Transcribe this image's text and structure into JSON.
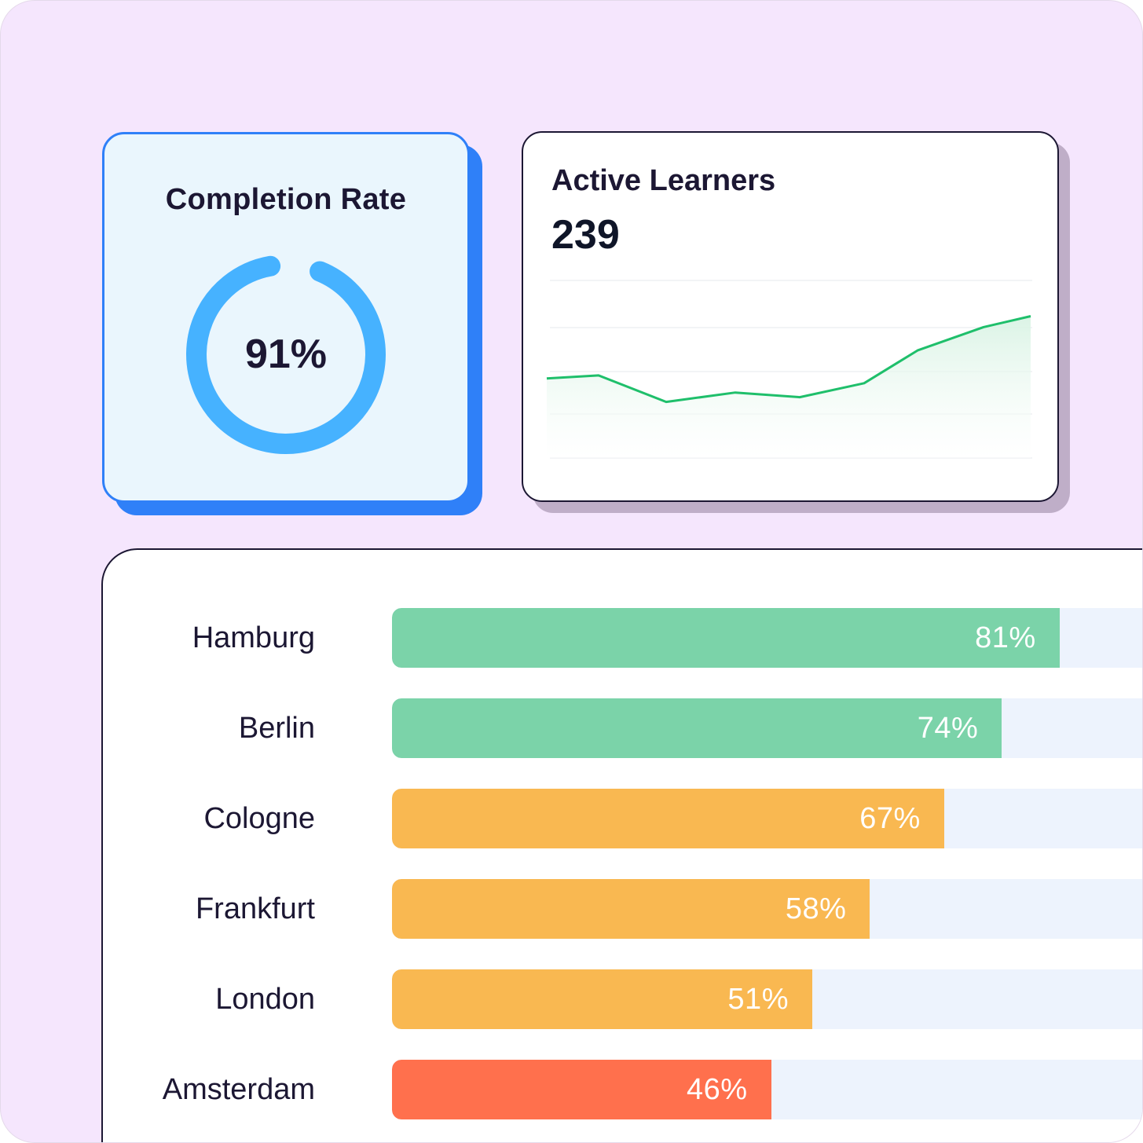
{
  "completion": {
    "title": "Completion Rate",
    "value_label": "91%",
    "percent": 91,
    "ring_color": "#46b2ff",
    "track_color": "#eaf6fd"
  },
  "learners": {
    "title": "Active Learners",
    "value": "239"
  },
  "chart_data": {
    "type": "area",
    "title": "Active Learners",
    "series": [
      {
        "values": [
          48,
          50,
          33,
          39,
          36,
          45,
          66,
          81,
          88
        ]
      }
    ],
    "ylim": [
      0,
      115
    ],
    "grid": true,
    "line_color": "#1fbf6b",
    "fill_color": "#e4f7ec"
  },
  "regions": {
    "items": [
      {
        "name": "Hamburg",
        "label": "81%",
        "value": 81,
        "color": "#7bd3a9"
      },
      {
        "name": "Berlin",
        "label": "74%",
        "value": 74,
        "color": "#7bd3a9"
      },
      {
        "name": "Cologne",
        "label": "67%",
        "value": 67,
        "color": "#f9b851"
      },
      {
        "name": "Frankfurt",
        "label": "58%",
        "value": 58,
        "color": "#f9b851"
      },
      {
        "name": "London",
        "label": "51%",
        "value": 51,
        "color": "#f9b851"
      },
      {
        "name": "Amsterdam",
        "label": "46%",
        "value": 46,
        "color": "#ff704d"
      }
    ]
  }
}
